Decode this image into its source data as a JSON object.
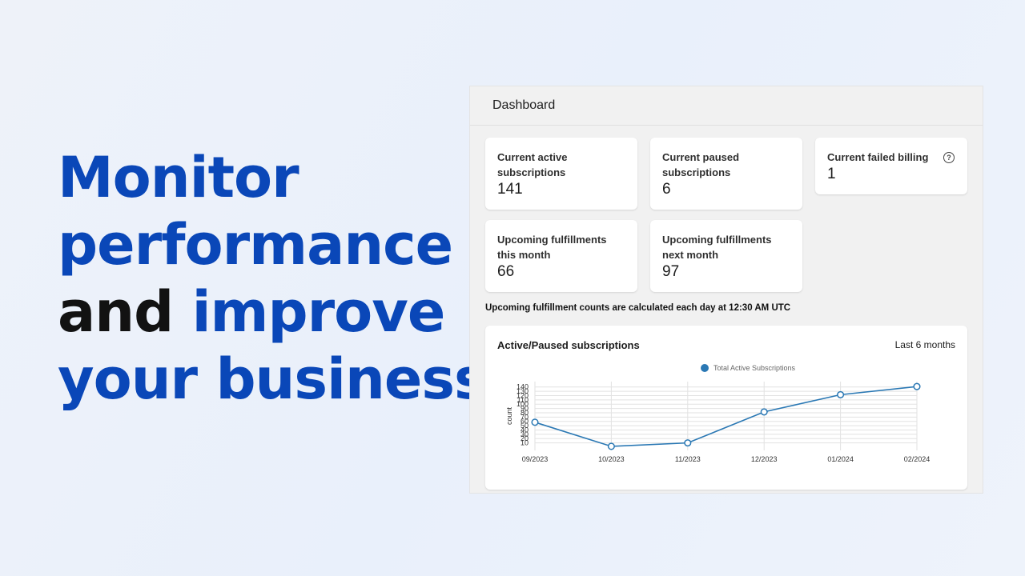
{
  "headline": {
    "line1": "Monitor",
    "line2": "performance",
    "line3_dark": "and",
    "line3_blue": "improve",
    "line4": "your business"
  },
  "dashboard": {
    "title": "Dashboard",
    "cards": {
      "active": {
        "label": "Current active subscriptions",
        "value": "141"
      },
      "paused": {
        "label": "Current paused subscriptions",
        "value": "6"
      },
      "failed": {
        "label": "Current failed billing",
        "value": "1",
        "icon": "help-circle-icon"
      },
      "this_month": {
        "label": "Upcoming fulfillments this month",
        "value": "66"
      },
      "next_month": {
        "label": "Upcoming fulfillments next month",
        "value": "97"
      }
    },
    "note": "Upcoming fulfillment counts are calculated each day at 12:30 AM UTC",
    "chart_card": {
      "title": "Active/Paused subscriptions",
      "range": "Last 6 months"
    }
  },
  "colors": {
    "headline_blue": "#0a47b8",
    "headline_dark": "#121212",
    "series": "#2a78b4"
  },
  "chart_data": {
    "type": "line",
    "x": [
      "09/2023",
      "10/2023",
      "11/2023",
      "12/2023",
      "01/2024",
      "02/2024"
    ],
    "series": [
      {
        "name": "Total Active Subscriptions",
        "values": [
          58,
          2,
          10,
          82,
          122,
          141
        ]
      }
    ],
    "ylabel": "count",
    "yticks": [
      10,
      20,
      30,
      40,
      50,
      60,
      70,
      80,
      90,
      100,
      110,
      120,
      130,
      140
    ],
    "ylim": [
      0,
      145
    ],
    "legend": "top-center",
    "grid": true
  }
}
